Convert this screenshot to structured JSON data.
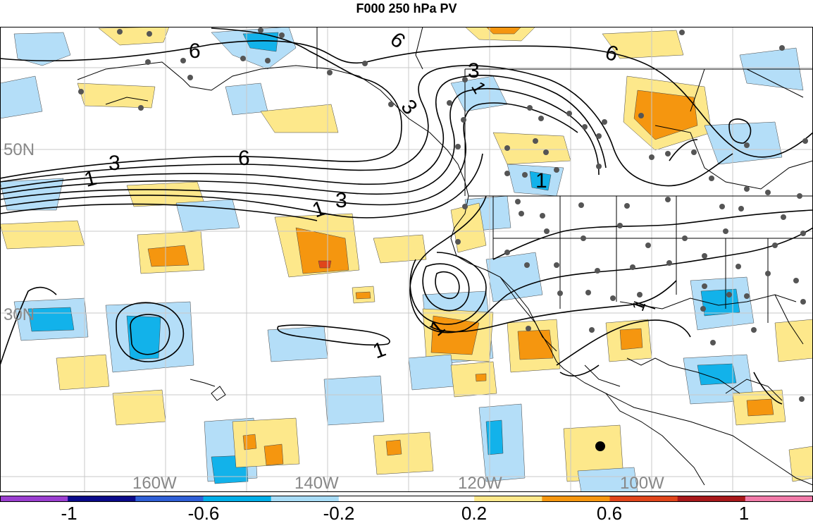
{
  "title": "F000 250 hPa PV",
  "grid_labels": {
    "lat": [
      "50N",
      "30N"
    ],
    "lon": [
      "160W",
      "140W",
      "120W",
      "100W"
    ]
  },
  "contour_labels": [
    "6",
    "6",
    "6",
    "6",
    "3",
    "3",
    "3",
    "3",
    "1",
    "1",
    "1",
    "1",
    "1",
    "1",
    "1"
  ],
  "colorbar": {
    "ticks": [
      "-1",
      "-0.6",
      "-0.2",
      "0.2",
      "0.6",
      "1"
    ],
    "colors": [
      "#9b3fd0",
      "#0a0a8a",
      "#2f5fd6",
      "#00aee8",
      "#a8dcf6",
      "#ffffff",
      "#ffffff",
      "#fde88b",
      "#f5960f",
      "#e0451a",
      "#a8181a",
      "#f07aa8"
    ]
  },
  "colors": {
    "neg_light": "#b4def8",
    "neg_mid": "#12b2ea",
    "pos_light": "#fde88b",
    "pos_mid": "#f5960f",
    "pos_high": "#e0451a",
    "station": "#555555",
    "grid_label": "#888888"
  }
}
